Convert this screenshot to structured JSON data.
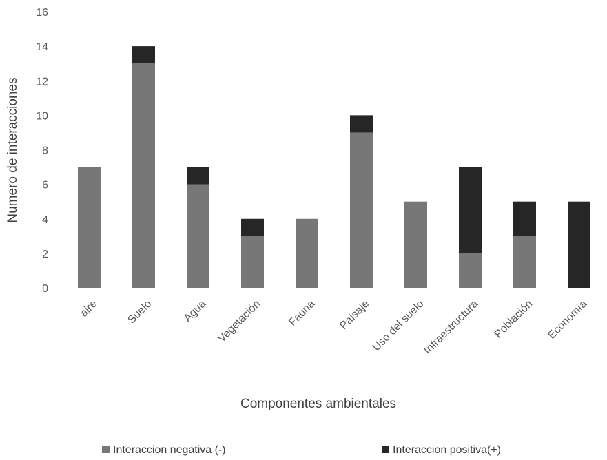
{
  "chart_data": {
    "type": "bar",
    "stacked": true,
    "categories": [
      "aire",
      "Suelo",
      "Agua",
      "Vegetación",
      "Fauna",
      "Paisaje",
      "Uso del suelo",
      "Infraestructura",
      "Población",
      "Economía"
    ],
    "series": [
      {
        "name": "Interaccion negativa (-)",
        "values": [
          7,
          13,
          6,
          3,
          4,
          9,
          5,
          2,
          3,
          0
        ],
        "color": "#777777"
      },
      {
        "name": "Interaccion positiva(+)",
        "values": [
          0,
          1,
          1,
          1,
          0,
          1,
          0,
          5,
          2,
          5
        ],
        "color": "#262626"
      }
    ],
    "xlabel": "Componentes ambientales",
    "ylabel": "Numero de interacciones",
    "ylim": [
      0,
      16
    ],
    "yticks": [
      "0",
      "2",
      "4",
      "6",
      "8",
      "10",
      "12",
      "14",
      "16"
    ],
    "grid": false,
    "legend_position": "bottom"
  }
}
